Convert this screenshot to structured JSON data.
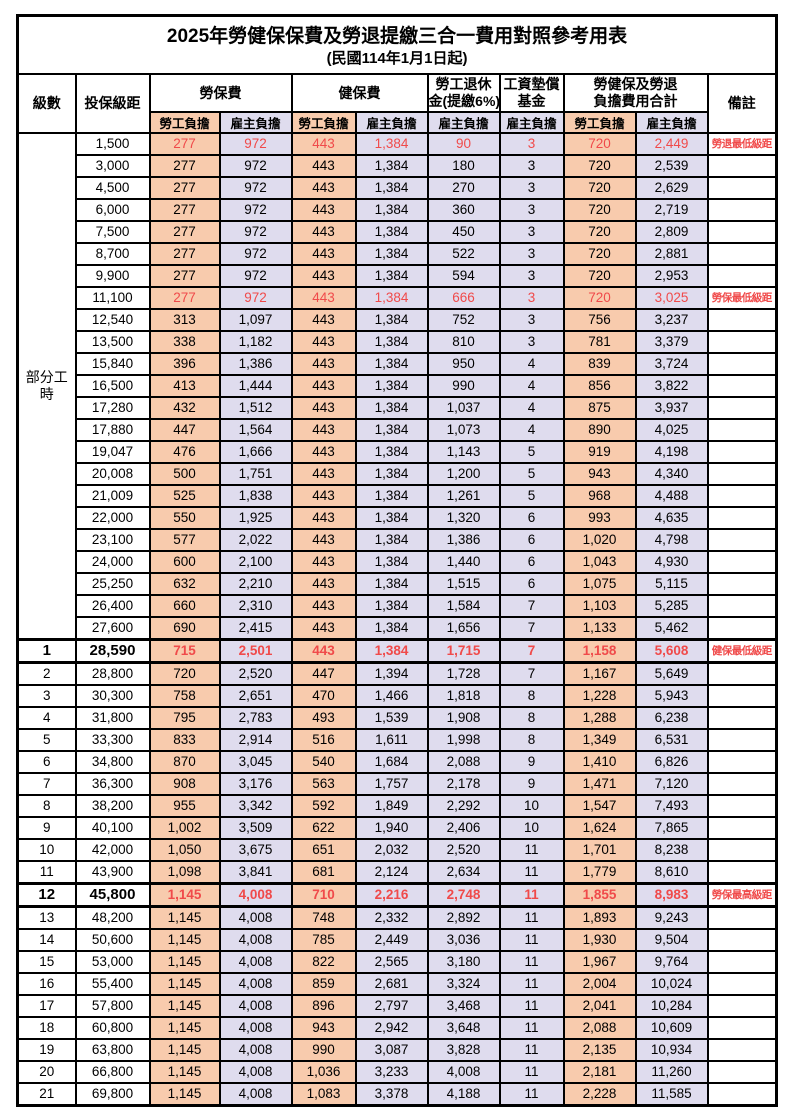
{
  "title": "2025年勞健保保費及勞退提繳三合一費用對照參考用表",
  "subtitle": "(民國114年1月1日起)",
  "colors": {
    "employee_bg": "#F8CBAD",
    "employer_bg": "#DFDCEE",
    "highlight_red": "#F04A4A",
    "border": "#000000"
  },
  "header": {
    "level": "級數",
    "bracket": "投保級距",
    "labor_group": "勞保費",
    "health_group": "健保費",
    "pension_line1": "勞工退休",
    "pension_line2": "金(提繳6%)",
    "wage_fund_line1": "工資墊償",
    "wage_fund_line2": "基金",
    "total_line1": "勞健保及勞退",
    "total_line2": "負擔費用合計",
    "remark": "備註",
    "employee": "勞工負擔",
    "employer": "雇主負擔"
  },
  "part_time_label": "部分工時",
  "part_time_rowspan": 23,
  "column_pattern": [
    "emp",
    "er",
    "emp",
    "er",
    "er",
    "er",
    "emp",
    "er"
  ],
  "rows": [
    {
      "level": "",
      "bracket": "1,500",
      "values": [
        "277",
        "972",
        "443",
        "1,384",
        "90",
        "3",
        "720",
        "2,449"
      ],
      "remark": "勞退最低級距",
      "red": true,
      "emphasis": false
    },
    {
      "level": "",
      "bracket": "3,000",
      "values": [
        "277",
        "972",
        "443",
        "1,384",
        "180",
        "3",
        "720",
        "2,539"
      ],
      "remark": "",
      "red": false,
      "emphasis": false
    },
    {
      "level": "",
      "bracket": "4,500",
      "values": [
        "277",
        "972",
        "443",
        "1,384",
        "270",
        "3",
        "720",
        "2,629"
      ],
      "remark": "",
      "red": false,
      "emphasis": false
    },
    {
      "level": "",
      "bracket": "6,000",
      "values": [
        "277",
        "972",
        "443",
        "1,384",
        "360",
        "3",
        "720",
        "2,719"
      ],
      "remark": "",
      "red": false,
      "emphasis": false
    },
    {
      "level": "",
      "bracket": "7,500",
      "values": [
        "277",
        "972",
        "443",
        "1,384",
        "450",
        "3",
        "720",
        "2,809"
      ],
      "remark": "",
      "red": false,
      "emphasis": false
    },
    {
      "level": "",
      "bracket": "8,700",
      "values": [
        "277",
        "972",
        "443",
        "1,384",
        "522",
        "3",
        "720",
        "2,881"
      ],
      "remark": "",
      "red": false,
      "emphasis": false
    },
    {
      "level": "",
      "bracket": "9,900",
      "values": [
        "277",
        "972",
        "443",
        "1,384",
        "594",
        "3",
        "720",
        "2,953"
      ],
      "remark": "",
      "red": false,
      "emphasis": false
    },
    {
      "level": "",
      "bracket": "11,100",
      "values": [
        "277",
        "972",
        "443",
        "1,384",
        "666",
        "3",
        "720",
        "3,025"
      ],
      "remark": "勞保最低級距",
      "red": true,
      "emphasis": false
    },
    {
      "level": "",
      "bracket": "12,540",
      "values": [
        "313",
        "1,097",
        "443",
        "1,384",
        "752",
        "3",
        "756",
        "3,237"
      ],
      "remark": "",
      "red": false,
      "emphasis": false
    },
    {
      "level": "",
      "bracket": "13,500",
      "values": [
        "338",
        "1,182",
        "443",
        "1,384",
        "810",
        "3",
        "781",
        "3,379"
      ],
      "remark": "",
      "red": false,
      "emphasis": false
    },
    {
      "level": "",
      "bracket": "15,840",
      "values": [
        "396",
        "1,386",
        "443",
        "1,384",
        "950",
        "4",
        "839",
        "3,724"
      ],
      "remark": "",
      "red": false,
      "emphasis": false
    },
    {
      "level": "",
      "bracket": "16,500",
      "values": [
        "413",
        "1,444",
        "443",
        "1,384",
        "990",
        "4",
        "856",
        "3,822"
      ],
      "remark": "",
      "red": false,
      "emphasis": false
    },
    {
      "level": "",
      "bracket": "17,280",
      "values": [
        "432",
        "1,512",
        "443",
        "1,384",
        "1,037",
        "4",
        "875",
        "3,937"
      ],
      "remark": "",
      "red": false,
      "emphasis": false
    },
    {
      "level": "",
      "bracket": "17,880",
      "values": [
        "447",
        "1,564",
        "443",
        "1,384",
        "1,073",
        "4",
        "890",
        "4,025"
      ],
      "remark": "",
      "red": false,
      "emphasis": false
    },
    {
      "level": "",
      "bracket": "19,047",
      "values": [
        "476",
        "1,666",
        "443",
        "1,384",
        "1,143",
        "5",
        "919",
        "4,198"
      ],
      "remark": "",
      "red": false,
      "emphasis": false
    },
    {
      "level": "",
      "bracket": "20,008",
      "values": [
        "500",
        "1,751",
        "443",
        "1,384",
        "1,200",
        "5",
        "943",
        "4,340"
      ],
      "remark": "",
      "red": false,
      "emphasis": false
    },
    {
      "level": "",
      "bracket": "21,009",
      "values": [
        "525",
        "1,838",
        "443",
        "1,384",
        "1,261",
        "5",
        "968",
        "4,488"
      ],
      "remark": "",
      "red": false,
      "emphasis": false
    },
    {
      "level": "",
      "bracket": "22,000",
      "values": [
        "550",
        "1,925",
        "443",
        "1,384",
        "1,320",
        "6",
        "993",
        "4,635"
      ],
      "remark": "",
      "red": false,
      "emphasis": false
    },
    {
      "level": "",
      "bracket": "23,100",
      "values": [
        "577",
        "2,022",
        "443",
        "1,384",
        "1,386",
        "6",
        "1,020",
        "4,798"
      ],
      "remark": "",
      "red": false,
      "emphasis": false
    },
    {
      "level": "",
      "bracket": "24,000",
      "values": [
        "600",
        "2,100",
        "443",
        "1,384",
        "1,440",
        "6",
        "1,043",
        "4,930"
      ],
      "remark": "",
      "red": false,
      "emphasis": false
    },
    {
      "level": "",
      "bracket": "25,250",
      "values": [
        "632",
        "2,210",
        "443",
        "1,384",
        "1,515",
        "6",
        "1,075",
        "5,115"
      ],
      "remark": "",
      "red": false,
      "emphasis": false
    },
    {
      "level": "",
      "bracket": "26,400",
      "values": [
        "660",
        "2,310",
        "443",
        "1,384",
        "1,584",
        "7",
        "1,103",
        "5,285"
      ],
      "remark": "",
      "red": false,
      "emphasis": false
    },
    {
      "level": "",
      "bracket": "27,600",
      "values": [
        "690",
        "2,415",
        "443",
        "1,384",
        "1,656",
        "7",
        "1,133",
        "5,462"
      ],
      "remark": "",
      "red": false,
      "emphasis": false
    },
    {
      "level": "1",
      "bracket": "28,590",
      "values": [
        "715",
        "2,501",
        "443",
        "1,384",
        "1,715",
        "7",
        "1,158",
        "5,608"
      ],
      "remark": "健保最低級距",
      "red": true,
      "emphasis": true
    },
    {
      "level": "2",
      "bracket": "28,800",
      "values": [
        "720",
        "2,520",
        "447",
        "1,394",
        "1,728",
        "7",
        "1,167",
        "5,649"
      ],
      "remark": "",
      "red": false,
      "emphasis": false
    },
    {
      "level": "3",
      "bracket": "30,300",
      "values": [
        "758",
        "2,651",
        "470",
        "1,466",
        "1,818",
        "8",
        "1,228",
        "5,943"
      ],
      "remark": "",
      "red": false,
      "emphasis": false
    },
    {
      "level": "4",
      "bracket": "31,800",
      "values": [
        "795",
        "2,783",
        "493",
        "1,539",
        "1,908",
        "8",
        "1,288",
        "6,238"
      ],
      "remark": "",
      "red": false,
      "emphasis": false
    },
    {
      "level": "5",
      "bracket": "33,300",
      "values": [
        "833",
        "2,914",
        "516",
        "1,611",
        "1,998",
        "8",
        "1,349",
        "6,531"
      ],
      "remark": "",
      "red": false,
      "emphasis": false
    },
    {
      "level": "6",
      "bracket": "34,800",
      "values": [
        "870",
        "3,045",
        "540",
        "1,684",
        "2,088",
        "9",
        "1,410",
        "6,826"
      ],
      "remark": "",
      "red": false,
      "emphasis": false
    },
    {
      "level": "7",
      "bracket": "36,300",
      "values": [
        "908",
        "3,176",
        "563",
        "1,757",
        "2,178",
        "9",
        "1,471",
        "7,120"
      ],
      "remark": "",
      "red": false,
      "emphasis": false
    },
    {
      "level": "8",
      "bracket": "38,200",
      "values": [
        "955",
        "3,342",
        "592",
        "1,849",
        "2,292",
        "10",
        "1,547",
        "7,493"
      ],
      "remark": "",
      "red": false,
      "emphasis": false
    },
    {
      "level": "9",
      "bracket": "40,100",
      "values": [
        "1,002",
        "3,509",
        "622",
        "1,940",
        "2,406",
        "10",
        "1,624",
        "7,865"
      ],
      "remark": "",
      "red": false,
      "emphasis": false
    },
    {
      "level": "10",
      "bracket": "42,000",
      "values": [
        "1,050",
        "3,675",
        "651",
        "2,032",
        "2,520",
        "11",
        "1,701",
        "8,238"
      ],
      "remark": "",
      "red": false,
      "emphasis": false
    },
    {
      "level": "11",
      "bracket": "43,900",
      "values": [
        "1,098",
        "3,841",
        "681",
        "2,124",
        "2,634",
        "11",
        "1,779",
        "8,610"
      ],
      "remark": "",
      "red": false,
      "emphasis": false
    },
    {
      "level": "12",
      "bracket": "45,800",
      "values": [
        "1,145",
        "4,008",
        "710",
        "2,216",
        "2,748",
        "11",
        "1,855",
        "8,983"
      ],
      "remark": "勞保最高級距",
      "red": true,
      "emphasis": true
    },
    {
      "level": "13",
      "bracket": "48,200",
      "values": [
        "1,145",
        "4,008",
        "748",
        "2,332",
        "2,892",
        "11",
        "1,893",
        "9,243"
      ],
      "remark": "",
      "red": false,
      "emphasis": false
    },
    {
      "level": "14",
      "bracket": "50,600",
      "values": [
        "1,145",
        "4,008",
        "785",
        "2,449",
        "3,036",
        "11",
        "1,930",
        "9,504"
      ],
      "remark": "",
      "red": false,
      "emphasis": false
    },
    {
      "level": "15",
      "bracket": "53,000",
      "values": [
        "1,145",
        "4,008",
        "822",
        "2,565",
        "3,180",
        "11",
        "1,967",
        "9,764"
      ],
      "remark": "",
      "red": false,
      "emphasis": false
    },
    {
      "level": "16",
      "bracket": "55,400",
      "values": [
        "1,145",
        "4,008",
        "859",
        "2,681",
        "3,324",
        "11",
        "2,004",
        "10,024"
      ],
      "remark": "",
      "red": false,
      "emphasis": false
    },
    {
      "level": "17",
      "bracket": "57,800",
      "values": [
        "1,145",
        "4,008",
        "896",
        "2,797",
        "3,468",
        "11",
        "2,041",
        "10,284"
      ],
      "remark": "",
      "red": false,
      "emphasis": false
    },
    {
      "level": "18",
      "bracket": "60,800",
      "values": [
        "1,145",
        "4,008",
        "943",
        "2,942",
        "3,648",
        "11",
        "2,088",
        "10,609"
      ],
      "remark": "",
      "red": false,
      "emphasis": false
    },
    {
      "level": "19",
      "bracket": "63,800",
      "values": [
        "1,145",
        "4,008",
        "990",
        "3,087",
        "3,828",
        "11",
        "2,135",
        "10,934"
      ],
      "remark": "",
      "red": false,
      "emphasis": false
    },
    {
      "level": "20",
      "bracket": "66,800",
      "values": [
        "1,145",
        "4,008",
        "1,036",
        "3,233",
        "4,008",
        "11",
        "2,181",
        "11,260"
      ],
      "remark": "",
      "red": false,
      "emphasis": false
    },
    {
      "level": "21",
      "bracket": "69,800",
      "values": [
        "1,145",
        "4,008",
        "1,083",
        "3,378",
        "4,188",
        "11",
        "2,228",
        "11,585"
      ],
      "remark": "",
      "red": false,
      "emphasis": false
    }
  ]
}
